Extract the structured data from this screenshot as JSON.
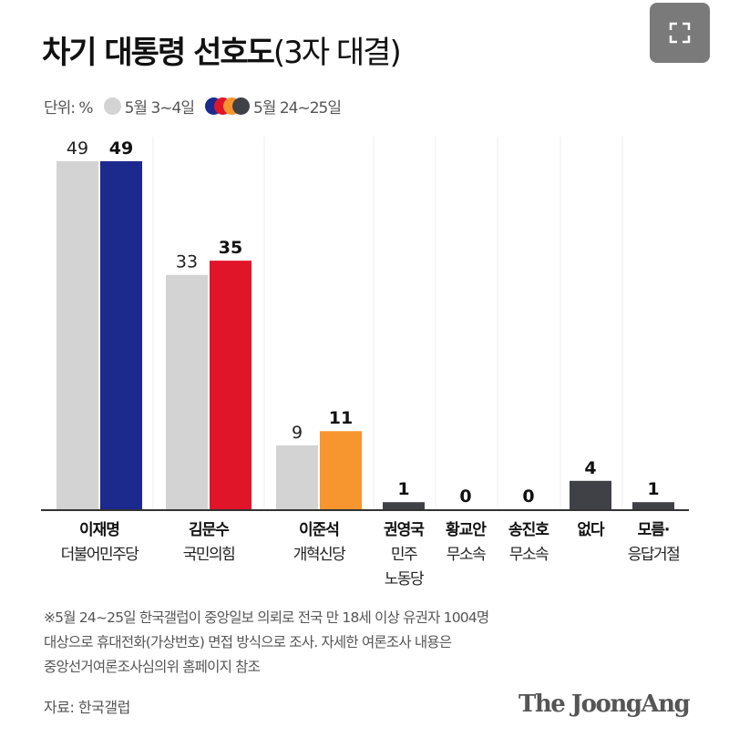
{
  "chart_data": {
    "type": "bar",
    "title": "차기 대통령 선호도",
    "subtitle": "(3자 대결)",
    "unit_label": "단위: %",
    "categories": [
      {
        "name": "이재명",
        "party": [
          "더불어민주당"
        ]
      },
      {
        "name": "김문수",
        "party": [
          "국민의힘"
        ]
      },
      {
        "name": "이준석",
        "party": [
          "개혁신당"
        ]
      },
      {
        "name": "권영국",
        "party": [
          "민주",
          "노동당"
        ]
      },
      {
        "name": "황교안",
        "party": [
          "무소속"
        ]
      },
      {
        "name": "송진호",
        "party": [
          "무소속"
        ]
      },
      {
        "name": "없다",
        "party": []
      },
      {
        "name": "모름·",
        "party": [
          "응답거절"
        ]
      }
    ],
    "series": [
      {
        "name": "5월 3~4일",
        "values": [
          49,
          33,
          9,
          null,
          null,
          null,
          null,
          null
        ],
        "colors": [
          "#d3d3d3"
        ]
      },
      {
        "name": "5월 24~25일",
        "values": [
          49,
          35,
          11,
          1,
          0,
          0,
          4,
          1
        ],
        "colors": [
          "#1b2a8c",
          "#e0152a",
          "#f7952e",
          "#3f4146",
          "#3f4146",
          "#3f4146",
          "#3f4146",
          "#3f4146"
        ]
      }
    ],
    "legend_colors": {
      "old": "#d3d3d3",
      "new": [
        "#1b2a8c",
        "#e0152a",
        "#f7952e",
        "#3f4146"
      ]
    },
    "ylim": [
      0,
      50
    ],
    "legend_position": "top-left",
    "grid": false
  },
  "footnote": [
    "※5월 24~25일 한국갤럽이 중앙일보 의뢰로 전국 만 18세 이상 유권자 1004명",
    "대상으로 휴대전화(가상번호) 면접 방식으로 조사. 자세한 여론조사 내용은",
    "중앙선거여론조사심의위 홈페이지 참조"
  ],
  "source": "자료: 한국갤럽",
  "brand": "The JoongAng"
}
